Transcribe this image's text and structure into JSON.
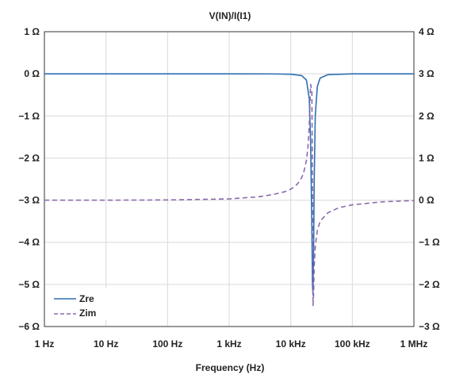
{
  "chart_data": {
    "type": "line",
    "title": "V(IN)/I(I1)",
    "xlabel": "Frequency (Hz)",
    "x_scale": "log",
    "xlim": [
      1,
      1000000
    ],
    "x_tick_labels": [
      "1 Hz",
      "10 Hz",
      "100 Hz",
      "1 kHz",
      "10 kHz",
      "100 kHz",
      "1 MHz"
    ],
    "x_tick_values": [
      1,
      10,
      100,
      1000,
      10000,
      100000,
      1000000
    ],
    "y_left": {
      "lim": [
        -6,
        1
      ],
      "tick_values": [
        1,
        0,
        -1,
        -2,
        -3,
        -4,
        -5,
        -6
      ],
      "tick_labels": [
        "1 Ω",
        "0 Ω",
        "−1 Ω",
        "−2 Ω",
        "−3 Ω",
        "−4 Ω",
        "−5 Ω",
        "−6 Ω"
      ]
    },
    "y_right": {
      "lim": [
        -3,
        4
      ],
      "tick_values": [
        4,
        3,
        2,
        1,
        0,
        -1,
        -2,
        -3
      ],
      "tick_labels": [
        "4 Ω",
        "3 Ω",
        "2 Ω",
        "1 Ω",
        "0 Ω",
        "−1 Ω",
        "−2 Ω",
        "−3 Ω"
      ]
    },
    "grid": true,
    "legend_position": "bottom-left",
    "series": [
      {
        "name": "Zre",
        "axis": "left",
        "color": "#2f6fb0",
        "style": "solid",
        "x": [
          1,
          10,
          100,
          1000,
          5000,
          10000,
          15000,
          18000,
          20000,
          21000,
          22000,
          22500,
          23000,
          23500,
          24000,
          25000,
          27000,
          30000,
          40000,
          100000,
          1000000
        ],
        "y": [
          0,
          0,
          0,
          0,
          -0.002,
          -0.01,
          -0.04,
          -0.15,
          -0.6,
          -1.6,
          -3.6,
          -5.0,
          -5.25,
          -4.2,
          -2.6,
          -1.0,
          -0.3,
          -0.1,
          -0.02,
          0,
          0
        ]
      },
      {
        "name": "Zim",
        "axis": "right",
        "color": "#8a6aad",
        "style": "dashed",
        "x": [
          1,
          10,
          100,
          1000,
          3000,
          5000,
          8000,
          10000,
          12000,
          14000,
          16000,
          18000,
          19000,
          20000,
          20500,
          21000,
          22000,
          22500,
          23000,
          23500,
          24000,
          25000,
          27000,
          30000,
          40000,
          60000,
          100000,
          300000,
          1000000
        ],
        "y": [
          0,
          0,
          0.005,
          0.03,
          0.08,
          0.13,
          0.2,
          0.26,
          0.34,
          0.45,
          0.62,
          0.95,
          1.25,
          1.8,
          2.3,
          2.75,
          2.6,
          0.5,
          -2.5,
          -2.2,
          -1.6,
          -1.1,
          -0.72,
          -0.5,
          -0.3,
          -0.18,
          -0.11,
          -0.04,
          -0.01
        ]
      }
    ]
  }
}
